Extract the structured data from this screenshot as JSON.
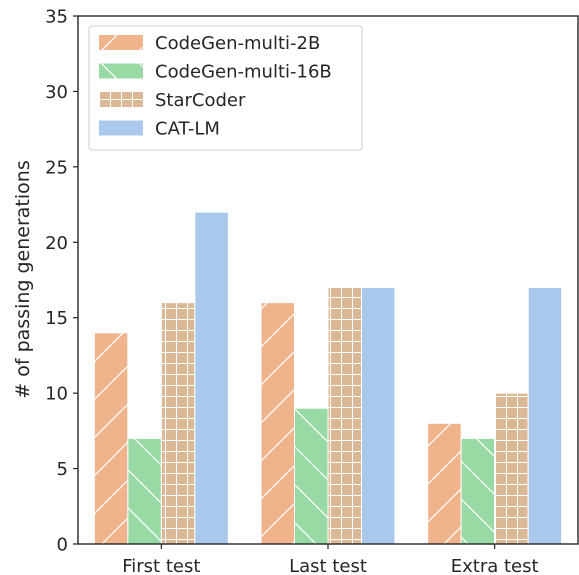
{
  "chart_data": {
    "type": "bar",
    "title": "",
    "xlabel": "",
    "ylabel": "# of passing generations",
    "categories": [
      "First test",
      "Last test",
      "Extra test"
    ],
    "ylim": [
      0,
      35
    ],
    "yticks": [
      0,
      5,
      10,
      15,
      20,
      25,
      30,
      35
    ],
    "grid": false,
    "legend_position": "top-left",
    "series": [
      {
        "name": "CodeGen-multi-2B",
        "values": [
          14,
          16,
          8
        ],
        "color": "#f0b48c",
        "hatch": "forward-diagonal"
      },
      {
        "name": "CodeGen-multi-16B",
        "values": [
          7,
          9,
          7
        ],
        "color": "#98d9a4",
        "hatch": "back-diagonal"
      },
      {
        "name": "StarCoder",
        "values": [
          16,
          17,
          10
        ],
        "color": "#dbb896",
        "hatch": "grid"
      },
      {
        "name": "CAT-LM",
        "values": [
          22,
          17,
          17
        ],
        "color": "#a9c8ec",
        "hatch": "none"
      }
    ]
  }
}
